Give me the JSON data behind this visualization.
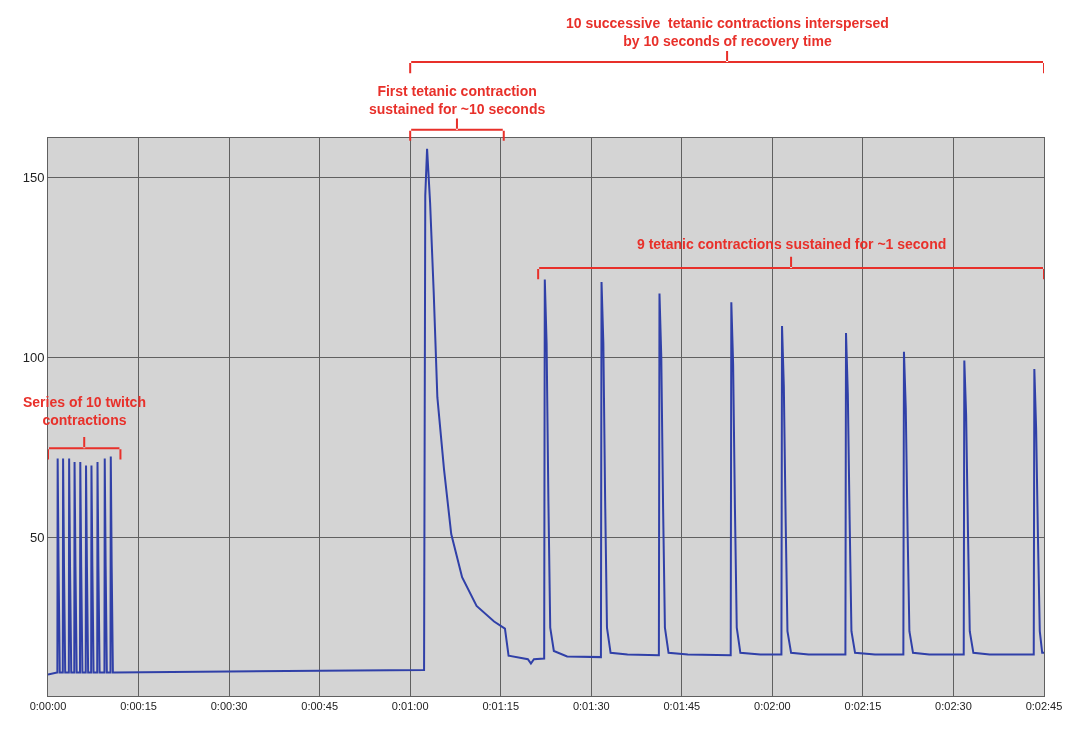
{
  "chart_data": {
    "type": "line",
    "x": [
      0,
      1.5,
      1.55,
      1.6,
      1.75,
      1.95,
      2.45,
      2.5,
      2.65,
      2.85,
      3.45,
      3.5,
      3.65,
      3.85,
      4.35,
      4.4,
      4.55,
      4.75,
      5.3,
      5.35,
      5.5,
      5.7,
      6.25,
      6.3,
      6.45,
      6.65,
      7.15,
      7.2,
      7.35,
      7.55,
      8.15,
      8.2,
      8.35,
      8.55,
      9.35,
      9.4,
      9.55,
      9.75,
      10.35,
      10.4,
      10.55,
      10.75,
      11,
      30,
      45,
      62.3,
      62.5,
      62.8,
      63.3,
      63.9,
      64.5,
      65.6,
      66.8,
      68.6,
      71,
      73.9,
      75.7,
      76.3,
      79.5,
      80,
      80.5,
      82.2,
      82.3,
      82.6,
      82.9,
      83.2,
      83.8,
      86,
      91.6,
      91.7,
      92.0,
      92.3,
      92.6,
      93.2,
      96,
      101.2,
      101.3,
      101.6,
      101.9,
      102.2,
      102.8,
      106,
      113.1,
      113.2,
      113.5,
      113.8,
      114.1,
      114.7,
      118,
      121.5,
      121.6,
      121.9,
      122.2,
      122.5,
      123.1,
      126,
      132.1,
      132.2,
      132.5,
      132.8,
      133.1,
      133.7,
      137,
      141.7,
      141.8,
      142.1,
      142.4,
      142.7,
      143.3,
      146,
      151.7,
      151.8,
      152.1,
      152.4,
      152.7,
      153.3,
      156,
      163.3,
      163.4,
      163.7,
      164,
      164.3,
      164.7,
      165
    ],
    "series": [
      {
        "color": "#3040a8",
        "values": [
          12,
          12.5,
          12.5,
          72,
          42,
          12.5,
          12.5,
          72,
          42,
          12.5,
          12.5,
          72,
          42,
          12.5,
          12.5,
          71,
          42,
          12.5,
          12.5,
          71,
          42,
          12.5,
          12.5,
          70,
          42,
          12.5,
          12.5,
          70,
          42,
          12.5,
          12.5,
          71,
          42,
          12.5,
          12.5,
          72,
          42,
          12.5,
          12.5,
          72.5,
          42,
          12.5,
          12.5,
          12.8,
          13,
          13.2,
          145,
          158,
          143,
          118,
          89,
          69,
          51,
          39,
          31,
          26.7,
          24.7,
          17.2,
          16.2,
          15,
          16.2,
          16.4,
          121.7,
          104,
          60,
          25,
          18.5,
          17,
          16.8,
          121,
          104,
          60,
          25,
          18,
          17.5,
          17.3,
          117.8,
          100,
          58,
          25,
          18,
          17.5,
          17.3,
          115.4,
          98,
          58,
          25,
          18,
          17.5,
          17.5,
          108.8,
          92,
          55,
          24,
          18,
          17.5,
          17.5,
          106.8,
          90,
          55,
          24,
          18,
          17.5,
          17.5,
          101.6,
          86,
          52,
          24,
          18,
          17.5,
          17.5,
          99.2,
          84,
          52,
          24,
          18,
          17.5,
          17.5,
          96.8,
          80,
          50,
          24,
          18,
          18
        ]
      }
    ],
    "xlim": [
      0,
      165
    ],
    "xticks": [
      {
        "value": 0,
        "label": "0:00:00"
      },
      {
        "value": 15,
        "label": "0:00:15"
      },
      {
        "value": 30,
        "label": "0:00:30"
      },
      {
        "value": 45,
        "label": "0:00:45"
      },
      {
        "value": 60,
        "label": "0:01:00"
      },
      {
        "value": 75,
        "label": "0:01:15"
      },
      {
        "value": 90,
        "label": "0:01:30"
      },
      {
        "value": 105,
        "label": "0:01:45"
      },
      {
        "value": 120,
        "label": "0:02:00"
      },
      {
        "value": 135,
        "label": "0:02:15"
      },
      {
        "value": 150,
        "label": "0:02:30"
      },
      {
        "value": 165,
        "label": "0:02:45"
      }
    ],
    "ylim": [
      6,
      161
    ],
    "yticks": [
      50,
      100,
      150
    ],
    "grid": true,
    "line_style": "solid",
    "annotations": [
      "10 successive  tetanic contractions interspersed\nby 10 seconds of recovery time",
      "First tetanic contraction\nsustained for ~10 seconds",
      "9 tetanic contractions sustained for ~1 second",
      "Series of 10 twitch\ncontractions"
    ]
  }
}
